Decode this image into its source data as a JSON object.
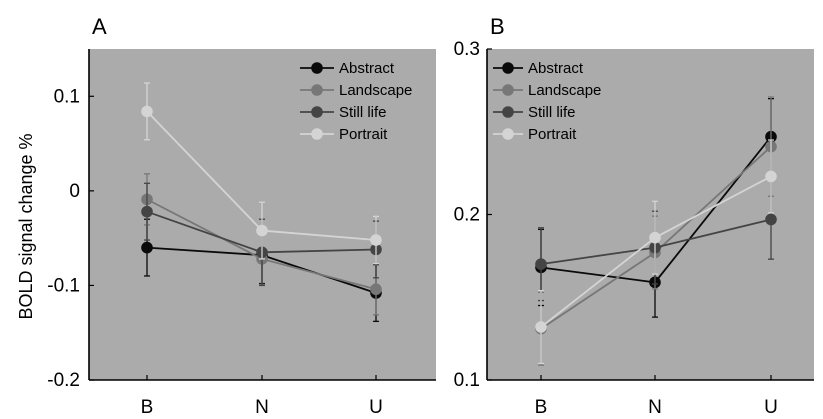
{
  "chart_data": [
    {
      "type": "line",
      "panel_label": "A",
      "ylabel": "BOLD signal change %",
      "categories": [
        "B",
        "N",
        "U"
      ],
      "ylim": [
        -0.2,
        0.15
      ],
      "yticks": [
        -0.2,
        -0.1,
        0,
        0.1
      ],
      "ytick_labels": [
        "-0.2",
        "-0.1",
        "0",
        "0.1"
      ],
      "legend_position": "top-right",
      "grid": false,
      "series": [
        {
          "name": "Abstract",
          "color": "#0a0a0a",
          "values": [
            -0.06,
            -0.068,
            -0.108
          ],
          "errors": [
            0.03,
            0.03,
            0.03
          ]
        },
        {
          "name": "Landscape",
          "color": "#777777",
          "values": [
            -0.009,
            -0.072,
            -0.104
          ],
          "errors": [
            0.027,
            0.027,
            0.027
          ]
        },
        {
          "name": "Still life",
          "color": "#444444",
          "values": [
            -0.022,
            -0.065,
            -0.062
          ],
          "errors": [
            0.03,
            0.035,
            0.03
          ]
        },
        {
          "name": "Portrait",
          "color": "#d4d4d4",
          "values": [
            0.084,
            -0.042,
            -0.052
          ],
          "errors": [
            0.03,
            0.03,
            0.025
          ]
        }
      ]
    },
    {
      "type": "line",
      "panel_label": "B",
      "ylabel": "",
      "categories": [
        "B",
        "N",
        "U"
      ],
      "ylim": [
        0.1,
        0.3
      ],
      "yticks": [
        0.1,
        0.2,
        0.3
      ],
      "ytick_labels": [
        "0.1",
        "0.2",
        "0.3"
      ],
      "legend_position": "top-left",
      "grid": false,
      "series": [
        {
          "name": "Abstract",
          "color": "#0a0a0a",
          "values": [
            0.168,
            0.159,
            0.247
          ],
          "errors": [
            0.023,
            0.021,
            0.023
          ]
        },
        {
          "name": "Landscape",
          "color": "#777777",
          "values": [
            0.131,
            0.177,
            0.241
          ],
          "errors": [
            0.022,
            0.022,
            0.03
          ]
        },
        {
          "name": "Still life",
          "color": "#444444",
          "values": [
            0.17,
            0.18,
            0.197
          ],
          "errors": [
            0.022,
            0.022,
            0.024
          ]
        },
        {
          "name": "Portrait",
          "color": "#d4d4d4",
          "values": [
            0.132,
            0.186,
            0.223
          ],
          "errors": [
            0.022,
            0.022,
            0.022
          ]
        }
      ]
    }
  ]
}
